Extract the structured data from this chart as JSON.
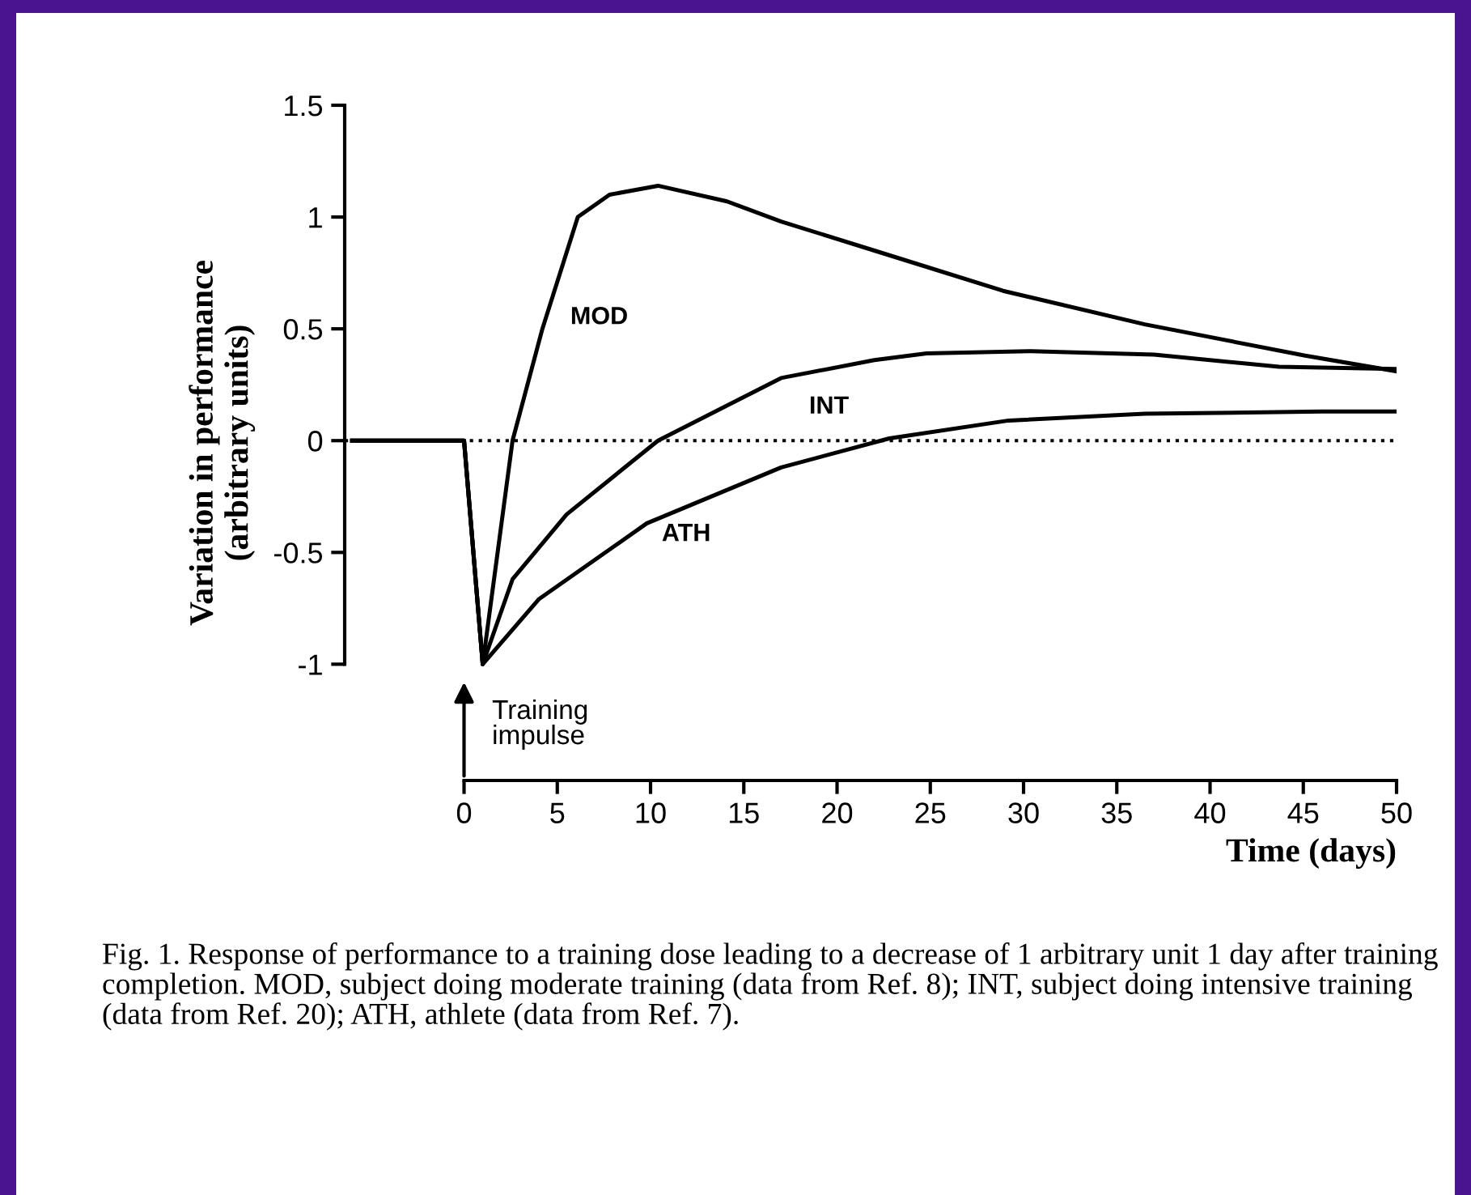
{
  "chart_data": {
    "type": "line",
    "xlabel": "Time (days)",
    "ylabel": "Variation in performance\n(arbitrary units)",
    "xlim": [
      -6.4,
      50
    ],
    "xticks": [
      0,
      5,
      10,
      15,
      20,
      25,
      30,
      35,
      40,
      45,
      50
    ],
    "ylim": [
      -1.52,
      1.5
    ],
    "yticks": [
      {
        "value": -1,
        "label": "-1"
      },
      {
        "value": -0.5,
        "label": "-0.5"
      },
      {
        "value": 0,
        "label": "0"
      },
      {
        "value": 0.5,
        "label": "0.5"
      },
      {
        "value": 1,
        "label": "1"
      },
      {
        "value": 1.5,
        "label": "1.5"
      }
    ],
    "grid": false,
    "legend": false,
    "marker": "none",
    "line_style": "solid",
    "series": [
      {
        "name": "MOD",
        "color": "#000000",
        "x": [
          -6,
          0,
          1,
          2.6,
          4.2,
          6.1,
          7.8,
          10.4,
          14.1,
          17,
          22,
          28.9,
          36.5,
          45.1,
          50
        ],
        "values": [
          0,
          0,
          -1,
          0,
          0.5,
          1,
          1.1,
          1.14,
          1.07,
          0.98,
          0.85,
          0.67,
          0.52,
          0.38,
          0.31
        ]
      },
      {
        "name": "INT",
        "color": "#000000",
        "x": [
          -6,
          0,
          1,
          2.6,
          5.5,
          10.4,
          17,
          22,
          24.8,
          30.4,
          37,
          43.7,
          50
        ],
        "values": [
          0,
          0,
          -1,
          -0.62,
          -0.33,
          0,
          0.28,
          0.36,
          0.39,
          0.4,
          0.385,
          0.33,
          0.32
        ]
      },
      {
        "name": "ATH",
        "color": "#000000",
        "x": [
          -6,
          0,
          1,
          4,
          9.8,
          17,
          22.8,
          29.2,
          36.5,
          46,
          50
        ],
        "values": [
          0,
          0,
          -1,
          -0.71,
          -0.37,
          -0.12,
          0.01,
          0.09,
          0.12,
          0.13,
          0.13
        ]
      }
    ],
    "ref_lines": [
      {
        "axis": "y",
        "value": 0,
        "line_style": "dotted",
        "color": "#000000"
      }
    ],
    "annotations": [
      "Training\nimpulse",
      "Fig. 1. Response of performance to a training dose leading to a decrease of 1 arbitrary unit 1 day after training completion. MOD, subject doing moderate training (data from Ref. 8); INT, subject doing intensive training (data from Ref. 20); ATH, athlete (data from Ref. 7)."
    ]
  }
}
